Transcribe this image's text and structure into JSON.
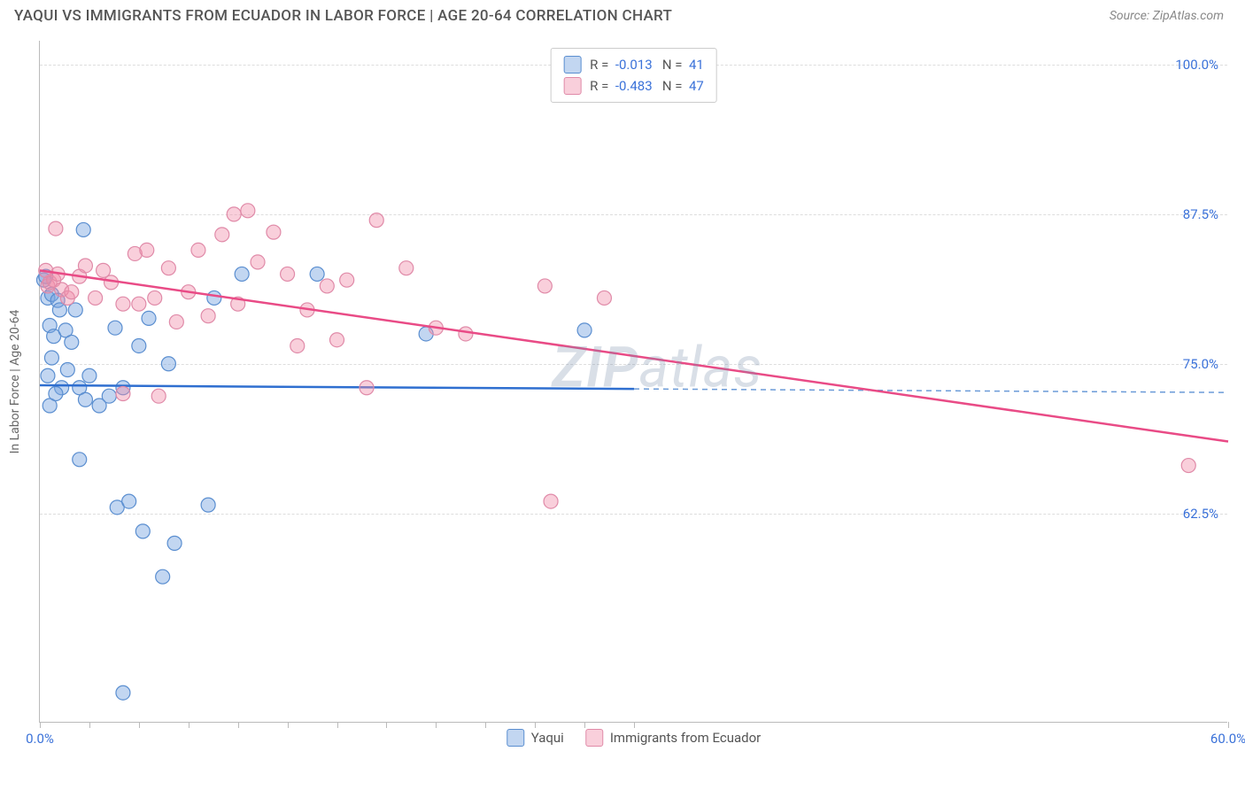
{
  "header": {
    "title": "YAQUI VS IMMIGRANTS FROM ECUADOR IN LABOR FORCE | AGE 20-64 CORRELATION CHART",
    "source_prefix": "Source: ",
    "source_name": "ZipAtlas.com"
  },
  "watermark": {
    "zip": "ZIP",
    "atlas": "atlas"
  },
  "chart": {
    "type": "scatter",
    "ylabel": "In Labor Force | Age 20-64",
    "xlim": [
      0,
      60
    ],
    "ylim": [
      45,
      102
    ],
    "xticks": [
      0,
      2.5,
      5,
      7.5,
      10,
      12.5,
      15,
      17.5,
      20,
      22.5,
      25,
      27.5,
      30,
      60
    ],
    "xtick_labels": {
      "0": "0.0%",
      "60": "60.0%"
    },
    "yticks": [
      62.5,
      75.0,
      87.5,
      100.0
    ],
    "ytick_labels": [
      "62.5%",
      "75.0%",
      "87.5%",
      "100.0%"
    ],
    "grid_color": "#dddddd",
    "background_color": "#ffffff",
    "marker_radius": 8,
    "marker_stroke_width": 1.2,
    "series": [
      {
        "name": "Yaqui",
        "fill": "rgba(120,165,225,0.45)",
        "stroke": "#5a8ed0",
        "line_color": "#2f6fd0",
        "line_dash_color": "#6b9bd8",
        "R": "-0.013",
        "N": "41",
        "trend": {
          "x1": 0,
          "y1": 73.2,
          "x2": 60,
          "y2": 72.6,
          "solid_until_x": 30
        },
        "points": [
          [
            0.2,
            82
          ],
          [
            0.3,
            82.3
          ],
          [
            0.4,
            80.5
          ],
          [
            0.5,
            78.2
          ],
          [
            0.6,
            80.8
          ],
          [
            0.7,
            77.3
          ],
          [
            0.9,
            80.3
          ],
          [
            1.0,
            79.5
          ],
          [
            1.3,
            77.8
          ],
          [
            1.6,
            76.8
          ],
          [
            1.1,
            73.0
          ],
          [
            0.5,
            71.5
          ],
          [
            0.8,
            72.5
          ],
          [
            1.4,
            74.5
          ],
          [
            2.0,
            73.0
          ],
          [
            2.3,
            72.0
          ],
          [
            2.5,
            74.0
          ],
          [
            3.0,
            71.5
          ],
          [
            3.5,
            72.3
          ],
          [
            4.2,
            73.0
          ],
          [
            3.8,
            78.0
          ],
          [
            5.0,
            76.5
          ],
          [
            5.5,
            78.8
          ],
          [
            6.5,
            75.0
          ],
          [
            8.8,
            80.5
          ],
          [
            10.2,
            82.5
          ],
          [
            14.0,
            82.5
          ],
          [
            19.5,
            77.5
          ],
          [
            27.5,
            77.8
          ],
          [
            2.0,
            67.0
          ],
          [
            2.2,
            86.2
          ],
          [
            3.9,
            63.0
          ],
          [
            4.5,
            63.5
          ],
          [
            8.5,
            63.2
          ],
          [
            5.2,
            61.0
          ],
          [
            6.8,
            60.0
          ],
          [
            6.2,
            57.2
          ],
          [
            4.2,
            47.5
          ],
          [
            0.6,
            75.5
          ],
          [
            1.8,
            79.5
          ],
          [
            0.4,
            74.0
          ]
        ]
      },
      {
        "name": "Immigants from Ecuador",
        "display_name": "Immigrants from Ecuador",
        "fill": "rgba(240,140,170,0.42)",
        "stroke": "#e08aa8",
        "line_color": "#e94b86",
        "R": "-0.483",
        "N": "47",
        "trend": {
          "x1": 0,
          "y1": 82.8,
          "x2": 60,
          "y2": 68.5,
          "solid_until_x": 60
        },
        "points": [
          [
            0.4,
            81.5
          ],
          [
            0.5,
            81.8
          ],
          [
            0.7,
            82.0
          ],
          [
            0.9,
            82.5
          ],
          [
            1.1,
            81.2
          ],
          [
            1.4,
            80.5
          ],
          [
            1.6,
            81.0
          ],
          [
            2.0,
            82.3
          ],
          [
            2.3,
            83.2
          ],
          [
            2.8,
            80.5
          ],
          [
            3.2,
            82.8
          ],
          [
            3.6,
            81.8
          ],
          [
            4.2,
            80.0
          ],
          [
            4.8,
            84.2
          ],
          [
            5.4,
            84.5
          ],
          [
            5.0,
            80.0
          ],
          [
            5.8,
            80.5
          ],
          [
            6.5,
            83.0
          ],
          [
            6.9,
            78.5
          ],
          [
            7.5,
            81.0
          ],
          [
            8.0,
            84.5
          ],
          [
            8.5,
            79.0
          ],
          [
            9.2,
            85.8
          ],
          [
            9.8,
            87.5
          ],
          [
            10.0,
            80.0
          ],
          [
            10.5,
            87.8
          ],
          [
            11.0,
            83.5
          ],
          [
            11.8,
            86.0
          ],
          [
            12.5,
            82.5
          ],
          [
            13.0,
            76.5
          ],
          [
            13.5,
            79.5
          ],
          [
            14.5,
            81.5
          ],
          [
            15.0,
            77.0
          ],
          [
            15.5,
            82.0
          ],
          [
            17.0,
            87.0
          ],
          [
            18.5,
            83.0
          ],
          [
            20.0,
            78.0
          ],
          [
            21.5,
            77.5
          ],
          [
            25.5,
            81.5
          ],
          [
            28.5,
            80.5
          ],
          [
            16.5,
            73.0
          ],
          [
            6.0,
            72.3
          ],
          [
            4.2,
            72.5
          ],
          [
            0.3,
            82.8
          ],
          [
            0.8,
            86.3
          ],
          [
            25.8,
            63.5
          ],
          [
            58.0,
            66.5
          ]
        ]
      }
    ]
  },
  "legend_top": {
    "R_label": "R",
    "N_label": "N",
    "eq": "="
  },
  "legend_bottom": {
    "items": [
      "Yaqui",
      "Immigrants from Ecuador"
    ]
  }
}
